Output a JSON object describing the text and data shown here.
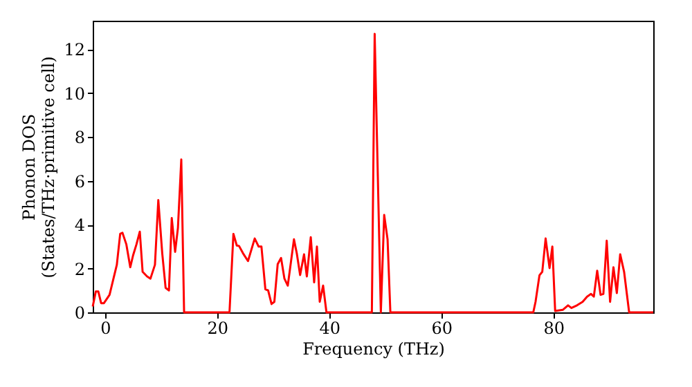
{
  "chart_data": {
    "type": "line",
    "xlabel": "Frequency (THz)",
    "ylabel": "Phonon DOS\n(States/THz·primitive cell)",
    "xlim": [
      -2.2,
      97.8
    ],
    "ylim": [
      0,
      13.3
    ],
    "xticks": [
      0,
      20,
      40,
      60,
      80
    ],
    "yticks": [
      0,
      2,
      4,
      6,
      8,
      10,
      12
    ],
    "grid": false,
    "legend": false,
    "line_style": "solid",
    "marker": "none",
    "series": [
      {
        "color": "#ff0000",
        "x": [
          -2.2,
          -1.65,
          -1.2,
          -0.7,
          -0.2,
          0.8,
          1.5,
          2.1,
          2.7,
          3.1,
          3.8,
          4.5,
          5.0,
          5.6,
          6.2,
          6.7,
          7.5,
          8.1,
          8.9,
          9.5,
          10.2,
          10.8,
          11.4,
          11.9,
          12.5,
          13.0,
          13.6,
          14.1,
          22.2,
          22.9,
          23.5,
          23.9,
          24.6,
          25.5,
          26.7,
          27.4,
          27.9,
          28.6,
          29.1,
          29.7,
          30.2,
          30.8,
          31.4,
          32.0,
          32.6,
          33.7,
          34.2,
          34.8,
          35.5,
          36.0,
          36.7,
          37.3,
          37.8,
          38.3,
          38.9,
          39.5,
          47.6,
          48.1,
          49.2,
          49.8,
          50.4,
          50.9,
          76.4,
          76.8,
          77.5,
          78.0,
          78.6,
          79.3,
          79.8,
          80.3,
          81.7,
          82.6,
          83.2,
          84.2,
          85.2,
          86.0,
          86.7,
          87.2,
          87.8,
          88.4,
          88.9,
          89.5,
          90.1,
          90.7,
          91.3,
          91.9,
          92.6,
          93.5,
          97.8
        ],
        "values": [
          0.27,
          0.95,
          0.95,
          0.42,
          0.42,
          0.8,
          1.54,
          2.17,
          3.58,
          3.63,
          3.1,
          2.06,
          2.6,
          3.1,
          3.68,
          1.85,
          1.64,
          1.54,
          2.17,
          5.12,
          2.7,
          1.12,
          1.0,
          4.3,
          2.76,
          3.85,
          6.97,
          0,
          0,
          3.58,
          3.05,
          3.03,
          2.7,
          2.34,
          3.37,
          3.0,
          3.0,
          1.05,
          1.0,
          0.38,
          0.48,
          2.2,
          2.48,
          1.54,
          1.22,
          3.33,
          2.7,
          1.7,
          2.65,
          1.64,
          3.43,
          1.37,
          3.0,
          0.48,
          1.22,
          0,
          0,
          12.7,
          0,
          4.44,
          3.33,
          0,
          0,
          0.48,
          1.69,
          1.85,
          3.37,
          2.02,
          3.0,
          0.06,
          0.12,
          0.32,
          0.2,
          0.32,
          0.48,
          0.72,
          0.84,
          0.72,
          1.9,
          0.8,
          0.84,
          3.27,
          0.48,
          2.06,
          0.88,
          2.65,
          1.85,
          0,
          0
        ]
      }
    ]
  }
}
